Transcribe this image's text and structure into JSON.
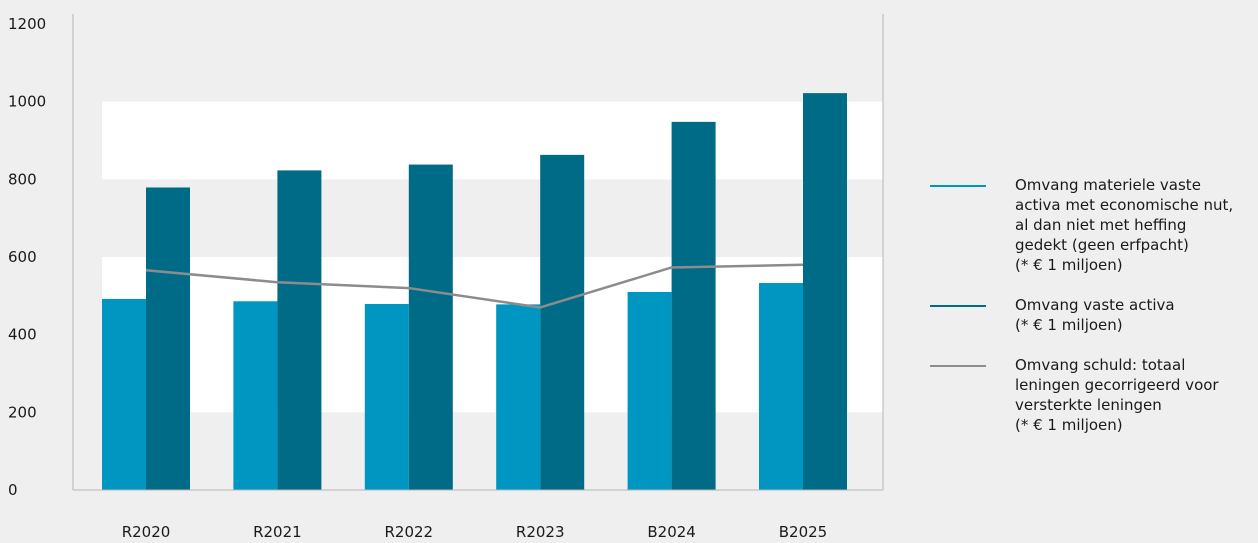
{
  "colors": {
    "background": "#efefef",
    "band": "#ffffff",
    "series1": "#0096c2",
    "series2": "#006b86",
    "line": "#8c8c8c",
    "axis": "#b5b5b5"
  },
  "chart_data": {
    "type": "bar",
    "title": "",
    "xlabel": "",
    "ylabel": "",
    "categories": [
      "R2020",
      "R2021",
      "R2022",
      "R2023",
      "B2024",
      "B2025"
    ],
    "ylim": [
      0,
      1200
    ],
    "yticks": [
      "0",
      "200",
      "400",
      "600",
      "800",
      "1000",
      "1200"
    ],
    "series": [
      {
        "name": "Omvang materiele vaste\nactiva met economische nut,\nal dan niet met heffing\ngedekt (geen erfpacht)\n(* € 1 miljoen)",
        "type": "bar",
        "color": "#0096c2",
        "values": [
          492,
          486,
          479,
          478,
          510,
          533
        ]
      },
      {
        "name": "Omvang vaste activa\n (* €  1 miljoen)",
        "type": "bar",
        "color": "#006b86",
        "values": [
          779,
          823,
          838,
          863,
          948,
          1022
        ]
      },
      {
        "name": "Omvang schuld: totaal\nleningen gecorrigeerd voor\nversterkte leningen\n(* €  1 miljoen)",
        "type": "line",
        "color": "#8c8c8c",
        "values": [
          566,
          535,
          520,
          470,
          573,
          580
        ]
      }
    ],
    "grid": "alternating-bands",
    "legend_position": "right"
  }
}
